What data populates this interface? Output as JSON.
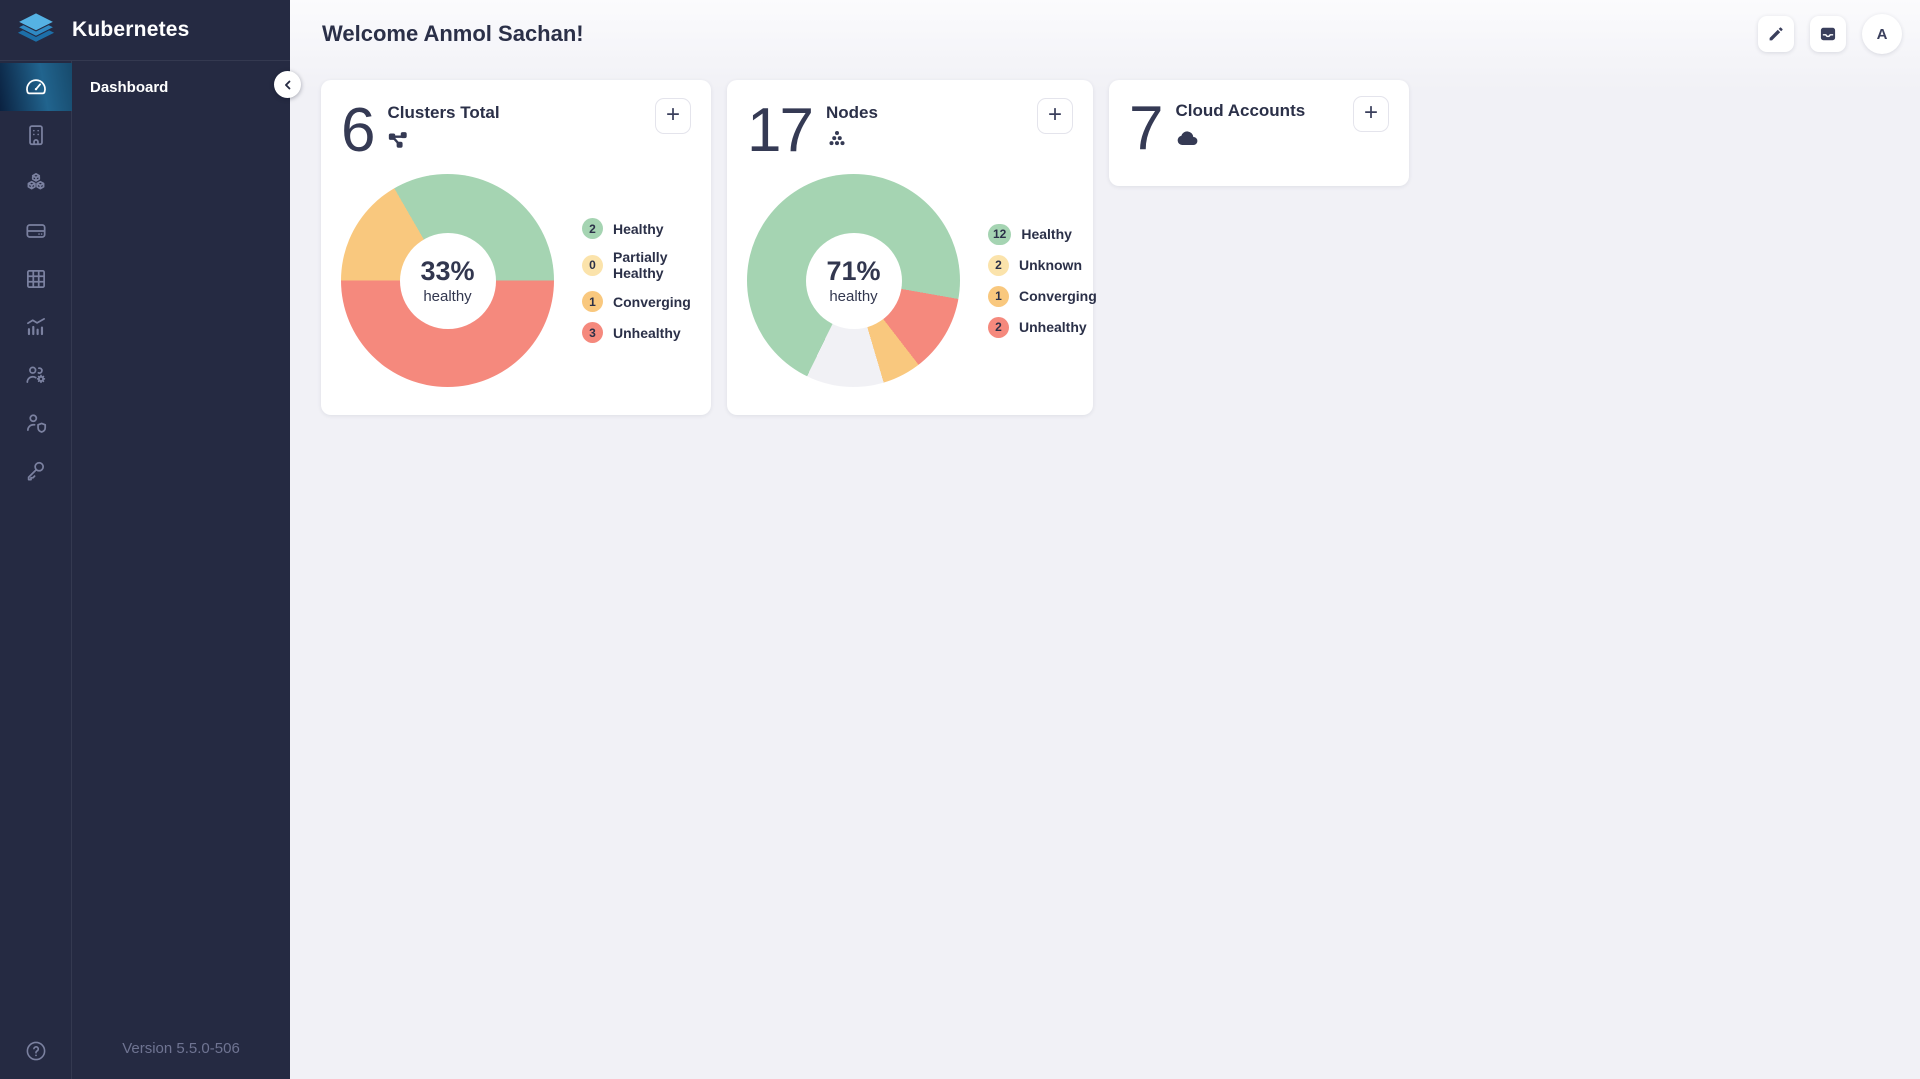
{
  "app": {
    "brand": "Kubernetes",
    "version": "Version 5.5.0-506"
  },
  "sidebar": {
    "nav_label": "Dashboard",
    "rail_items": [
      {
        "icon": "gauge-icon",
        "active": true
      },
      {
        "icon": "building-icon",
        "active": false
      },
      {
        "icon": "cubes-icon",
        "active": false
      },
      {
        "icon": "server-icon",
        "active": false
      },
      {
        "icon": "grid-icon",
        "active": false
      },
      {
        "icon": "bar-chart-icon",
        "active": false
      },
      {
        "icon": "users-gear-icon",
        "active": false
      },
      {
        "icon": "user-shield-icon",
        "active": false
      },
      {
        "icon": "key-icon",
        "active": false
      }
    ],
    "help_icon": "help-icon",
    "collapse_icon": "chevron-left-icon"
  },
  "header": {
    "title": "Welcome Anmol Sachan!",
    "actions": [
      {
        "icon": "pencil-icon"
      },
      {
        "icon": "inbox-icon"
      }
    ],
    "avatar_initial": "A"
  },
  "cards": [
    {
      "count": "6",
      "title": "Clusters Total",
      "icon": "network-icon",
      "add_label": "+",
      "chart_index": 0
    },
    {
      "count": "17",
      "title": "Nodes",
      "icon": "nodes-icon",
      "add_label": "+",
      "chart_index": 1
    },
    {
      "count": "7",
      "title": "Cloud Accounts",
      "icon": "cloud-icon",
      "add_label": "+",
      "chart_index": null
    }
  ],
  "chart_data": [
    {
      "type": "pie",
      "title": "Clusters Total",
      "total": 6,
      "center_text": "33%",
      "center_subtext": "healthy",
      "start_angle_deg": 90,
      "inner_radius_ratio": 0.45,
      "legend_position": "right",
      "segments": [
        {
          "label": "Unhealthy",
          "value": 3,
          "color": "#f5897d"
        },
        {
          "label": "Converging",
          "value": 1,
          "color": "#f9c87e"
        },
        {
          "label": "Healthy",
          "value": 2,
          "color": "#a5d4b2"
        }
      ],
      "legend": [
        {
          "count": "2",
          "label": "Healthy",
          "color": "#a5d4b2"
        },
        {
          "count": "0",
          "label": "Partially Healthy",
          "color": "#fbe3ab"
        },
        {
          "count": "1",
          "label": "Converging",
          "color": "#f9c87e"
        },
        {
          "count": "3",
          "label": "Unhealthy",
          "color": "#f5897d"
        }
      ]
    },
    {
      "type": "pie",
      "title": "Nodes",
      "total": 17,
      "center_text": "71%",
      "center_subtext": "healthy",
      "start_angle_deg": 100,
      "inner_radius_ratio": 0.45,
      "legend_position": "right",
      "segments": [
        {
          "label": "Unhealthy",
          "value": 2,
          "color": "#f5897d"
        },
        {
          "label": "Converging",
          "value": 1,
          "color": "#f9c87e"
        },
        {
          "label": "Unknown",
          "value": 2,
          "color": "#f1f1f5"
        },
        {
          "label": "Healthy",
          "value": 12,
          "color": "#a5d4b2"
        }
      ],
      "legend": [
        {
          "count": "12",
          "label": "Healthy",
          "color": "#a5d4b2"
        },
        {
          "count": "2",
          "label": "Unknown",
          "color": "#fbe3ab"
        },
        {
          "count": "1",
          "label": "Converging",
          "color": "#f9c87e"
        },
        {
          "count": "2",
          "label": "Unhealthy",
          "color": "#f5897d"
        }
      ]
    }
  ]
}
